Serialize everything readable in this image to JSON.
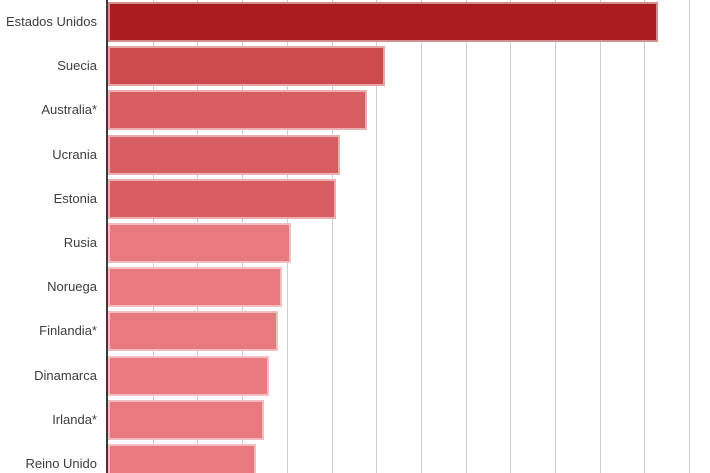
{
  "chart_data": {
    "type": "bar",
    "orientation": "horizontal",
    "title": "",
    "xlabel": "",
    "ylabel": "",
    "legend": null,
    "grid": true,
    "axis_value_labels_visible": false,
    "xlim": [
      0,
      13.5
    ],
    "gridline_step": 1,
    "categories": [
      "Estados Unidos",
      "Suecia",
      "Australia*",
      "Ucrania",
      "Estonia",
      "Rusia",
      "Noruega",
      "Finlandia*",
      "Dinamarca",
      "Irlanda*",
      "Reino Unido"
    ],
    "values": [
      12.3,
      6.2,
      5.8,
      5.2,
      5.1,
      4.1,
      3.9,
      3.8,
      3.6,
      3.5,
      3.3
    ]
  },
  "style": {
    "background": "#ffffff",
    "label_color": "#3d3d3d",
    "gridline_color": "#cdcdcd",
    "axis_line_color": "#3a3a3a",
    "bar_colors": [
      "#a91c20",
      "#cd4a4f",
      "#d75e62",
      "#d75e62",
      "#d75e62",
      "#e87a7f",
      "#e87a7f",
      "#e87a7f",
      "#e87a7f",
      "#e87a7f",
      "#e87a7f"
    ],
    "bar_border_colors": [
      "#d48e90",
      "#e6a5a7",
      "#ebafb1",
      "#ebafb1",
      "#ebafb1",
      "#f4bdbf",
      "#f4bdbf",
      "#f4bdbf",
      "#f4bdbf",
      "#f4bdbf",
      "#f4bdbf"
    ]
  }
}
